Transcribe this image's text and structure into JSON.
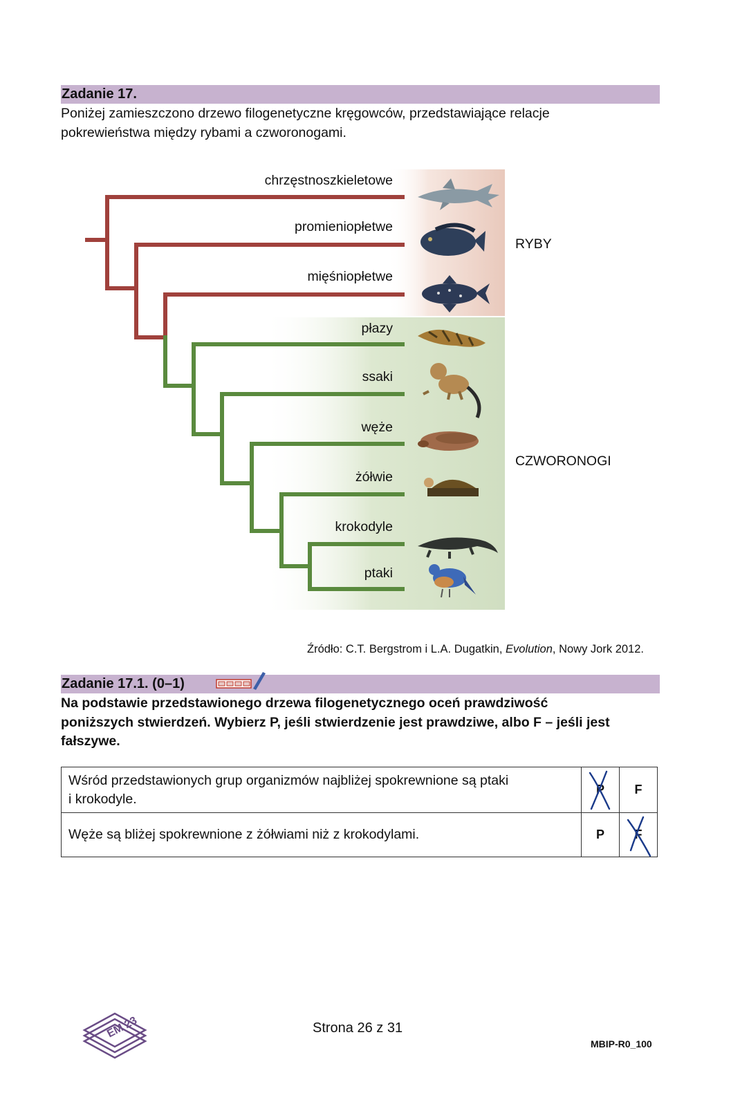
{
  "task": {
    "title": "Zadanie 17.",
    "intro_lines": [
      "Poniżej zamieszczono drzewo filogenetyczne kręgowców, przedstawiające relacje",
      "pokrewieństwa między rybami a czworonogami."
    ]
  },
  "tree": {
    "taxa": [
      "chrzęstnoszkieletowe",
      "promieniopłetwe",
      "mięśniopłetwe",
      "płazy",
      "ssaki",
      "węże",
      "żółwie",
      "krokodyle",
      "ptaki"
    ],
    "groups": {
      "fish": "RYBY",
      "tetrapods": "CZWORONOGI"
    },
    "colors": {
      "fish": "#a0413c",
      "tetrapods": "#5a8a3e",
      "fish_bg": "#efd6cc",
      "tetrapod_bg": "#d3e0c4"
    },
    "animal_icons": [
      "shark-icon",
      "fish-icon",
      "coelacanth-icon",
      "salamander-icon",
      "monkey-icon",
      "snake-icon",
      "turtle-icon",
      "crocodile-icon",
      "bird-icon"
    ]
  },
  "source": {
    "prefix": "Źródło: C.T. Bergstrom i L.A. Dugatkin, ",
    "title": "Evolution",
    "suffix": ", Nowy Jork 2012."
  },
  "subtask": {
    "title": "Zadanie 17.1. (0–1)",
    "instruction_lines": [
      "Na podstawie przedstawionego drzewa filogenetycznego oceń prawdziwość",
      "poniższych stwierdzeń. Wybierz P, jeśli stwierdzenie jest prawdziwe, albo F – jeśli jest",
      "fałszywe."
    ]
  },
  "statements": [
    {
      "text_lines": [
        "Wśród przedstawionych grup organizmów najbliżej spokrewnione są ptaki",
        "i krokodyle."
      ],
      "p": "P",
      "f": "F",
      "marked": "P"
    },
    {
      "text_lines": [
        "Węże są bliżej spokrewnione z żółwiami niż z krokodylami."
      ],
      "p": "P",
      "f": "F",
      "marked": "F"
    }
  ],
  "footer": {
    "logo_text": "EM 23",
    "page": "Strona 26 z 31",
    "code": "MBIP-R0_100"
  }
}
